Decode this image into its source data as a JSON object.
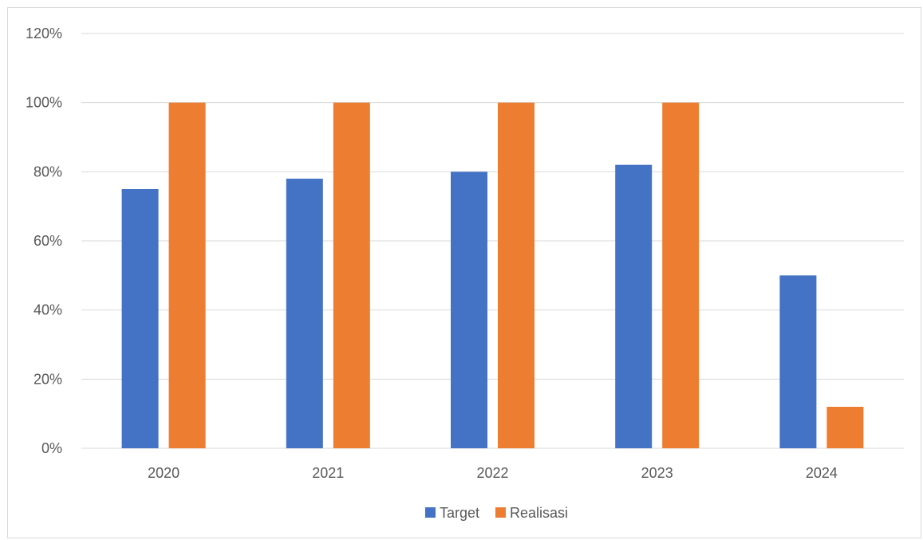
{
  "chart_data": {
    "type": "bar",
    "title": "",
    "xlabel": "",
    "ylabel": "",
    "categories": [
      "2020",
      "2021",
      "2022",
      "2023",
      "2024"
    ],
    "series": [
      {
        "name": "Target",
        "color": "#4472c4",
        "values": [
          75,
          78,
          80,
          82,
          50
        ]
      },
      {
        "name": "Realisasi",
        "color": "#ed7d31",
        "values": [
          100,
          100,
          100,
          100,
          12
        ]
      }
    ],
    "ylim": [
      0,
      120
    ],
    "yticks": [
      0,
      20,
      40,
      60,
      80,
      100,
      120
    ],
    "ytick_labels": [
      "0%",
      "20%",
      "40%",
      "60%",
      "80%",
      "100%",
      "120%"
    ],
    "grid": true,
    "legend_position": "bottom",
    "colors": {
      "gridline": "#d9d9d9",
      "text": "#595959"
    }
  }
}
